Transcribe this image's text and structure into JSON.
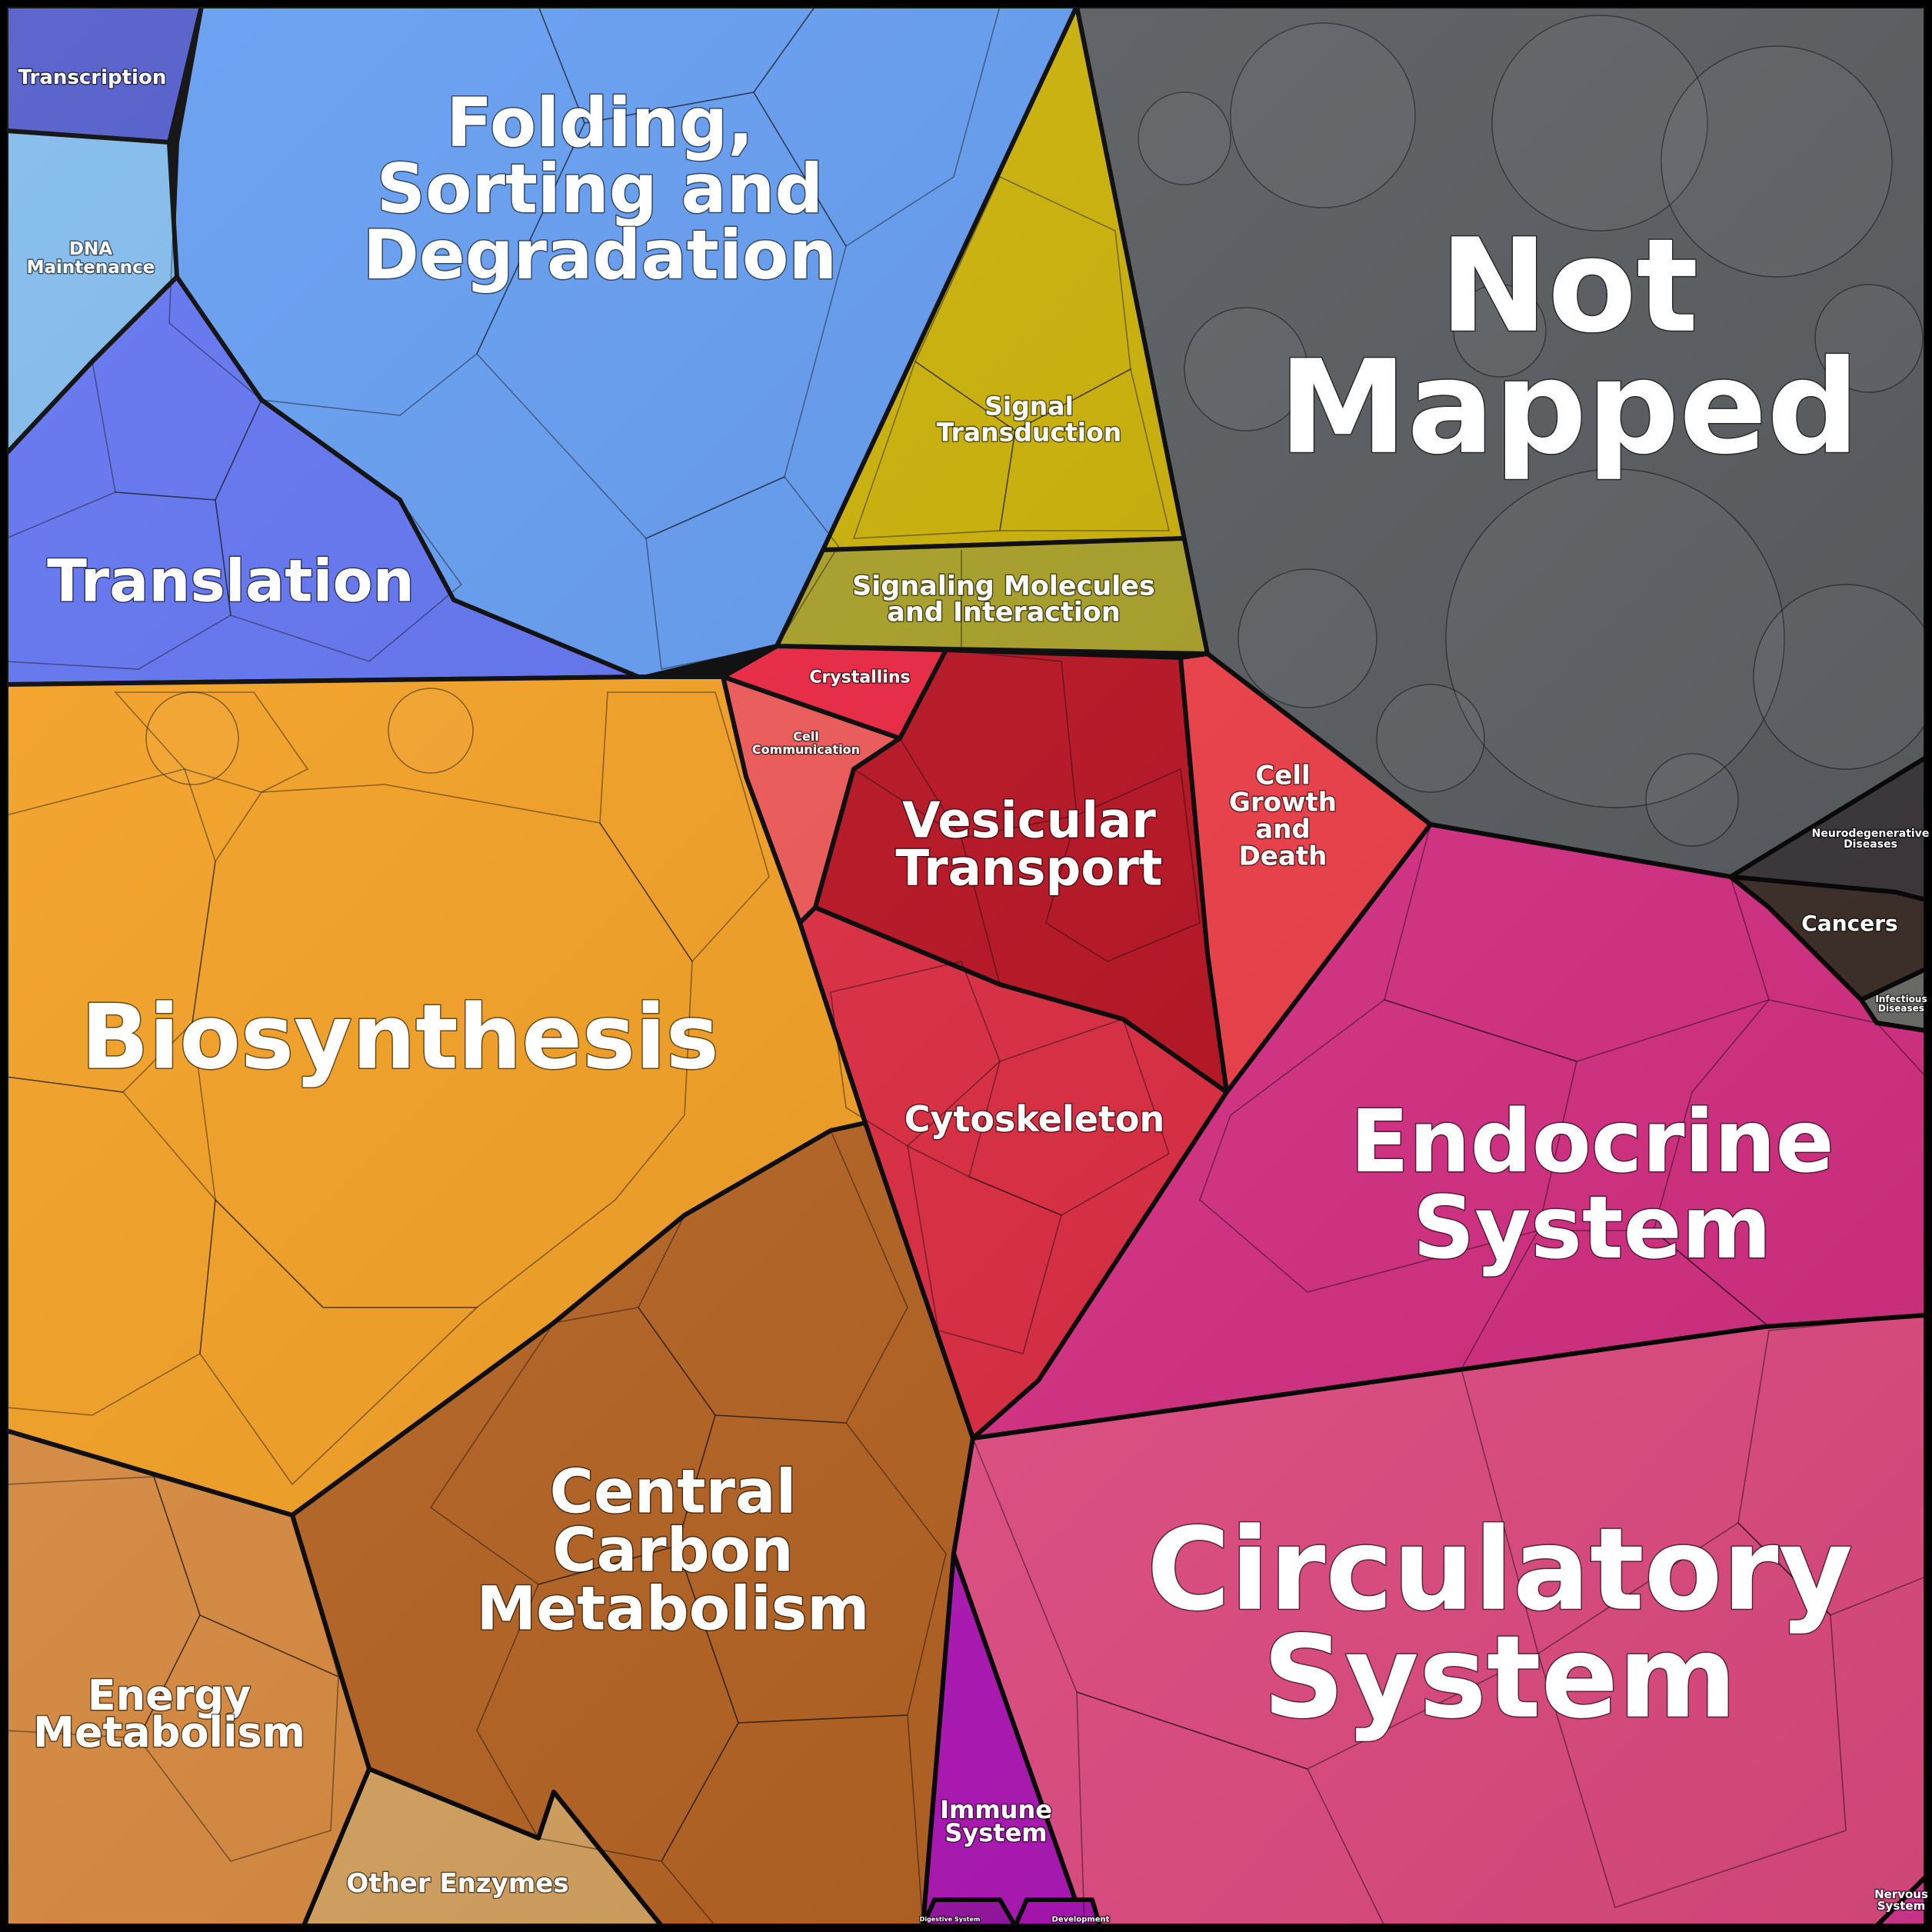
{
  "diagram": {
    "type": "voronoi-treemap",
    "categories": [
      {
        "id": "transcription",
        "label": "Transcription",
        "color": "#4a55c8"
      },
      {
        "id": "dna-maintenance",
        "label": "DNA Maintenance",
        "color": "#7db8ec"
      },
      {
        "id": "folding",
        "label": "Folding, Sorting and Degradation",
        "color": "#5f9af2"
      },
      {
        "id": "translation",
        "label": "Translation",
        "color": "#5b6ff0"
      },
      {
        "id": "signal-transduction",
        "label": "Signal Transduction",
        "color": "#cdb200"
      },
      {
        "id": "signaling-molecules",
        "label": "Signaling Molecules and Interaction",
        "color": "#a9a022"
      },
      {
        "id": "not-mapped",
        "label": "Not Mapped",
        "color": "#575b5f"
      },
      {
        "id": "crystallins",
        "label": "Crystallins",
        "color": "#f0213e"
      },
      {
        "id": "cell-communication",
        "label": "Cell Communication",
        "color": "#f35656"
      },
      {
        "id": "vesicular-transport",
        "label": "Vesicular Transport",
        "color": "#bb0e1e"
      },
      {
        "id": "cell-growth",
        "label": "Cell Growth and Death",
        "color": "#f43c46"
      },
      {
        "id": "cytoskeleton",
        "label": "Cytoskeleton",
        "color": "#e2283e"
      },
      {
        "id": "biosynthesis",
        "label": "Biosynthesis",
        "color": "#f7a01e"
      },
      {
        "id": "central-carbon",
        "label": "Central Carbon Metabolism",
        "color": "#b8621e"
      },
      {
        "id": "energy-metabolism",
        "label": "Energy Metabolism",
        "color": "#dc8a3c"
      },
      {
        "id": "other-enzymes",
        "label": "Other Enzymes",
        "color": "#d9a45e"
      },
      {
        "id": "neurodegenerative",
        "label": "Neurodegenerative Diseases",
        "color": "#3a3438"
      },
      {
        "id": "cancers",
        "label": "Cancers",
        "color": "#3b2c26"
      },
      {
        "id": "infectious",
        "label": "Infectious Diseases",
        "color": "#6e6e6a"
      },
      {
        "id": "endocrine",
        "label": "Endocrine System",
        "color": "#dc2e86"
      },
      {
        "id": "circulatory",
        "label": "Circulatory System",
        "color": "#ea4e88"
      },
      {
        "id": "immune",
        "label": "Immune System",
        "color": "#b414bc"
      },
      {
        "id": "nervous",
        "label": "Nervous System",
        "color": "#e03a9a"
      },
      {
        "id": "digestive",
        "label": "Digestive System",
        "color": "#9a10a6"
      },
      {
        "id": "development",
        "label": "Development",
        "color": "#b010b8"
      }
    ]
  }
}
